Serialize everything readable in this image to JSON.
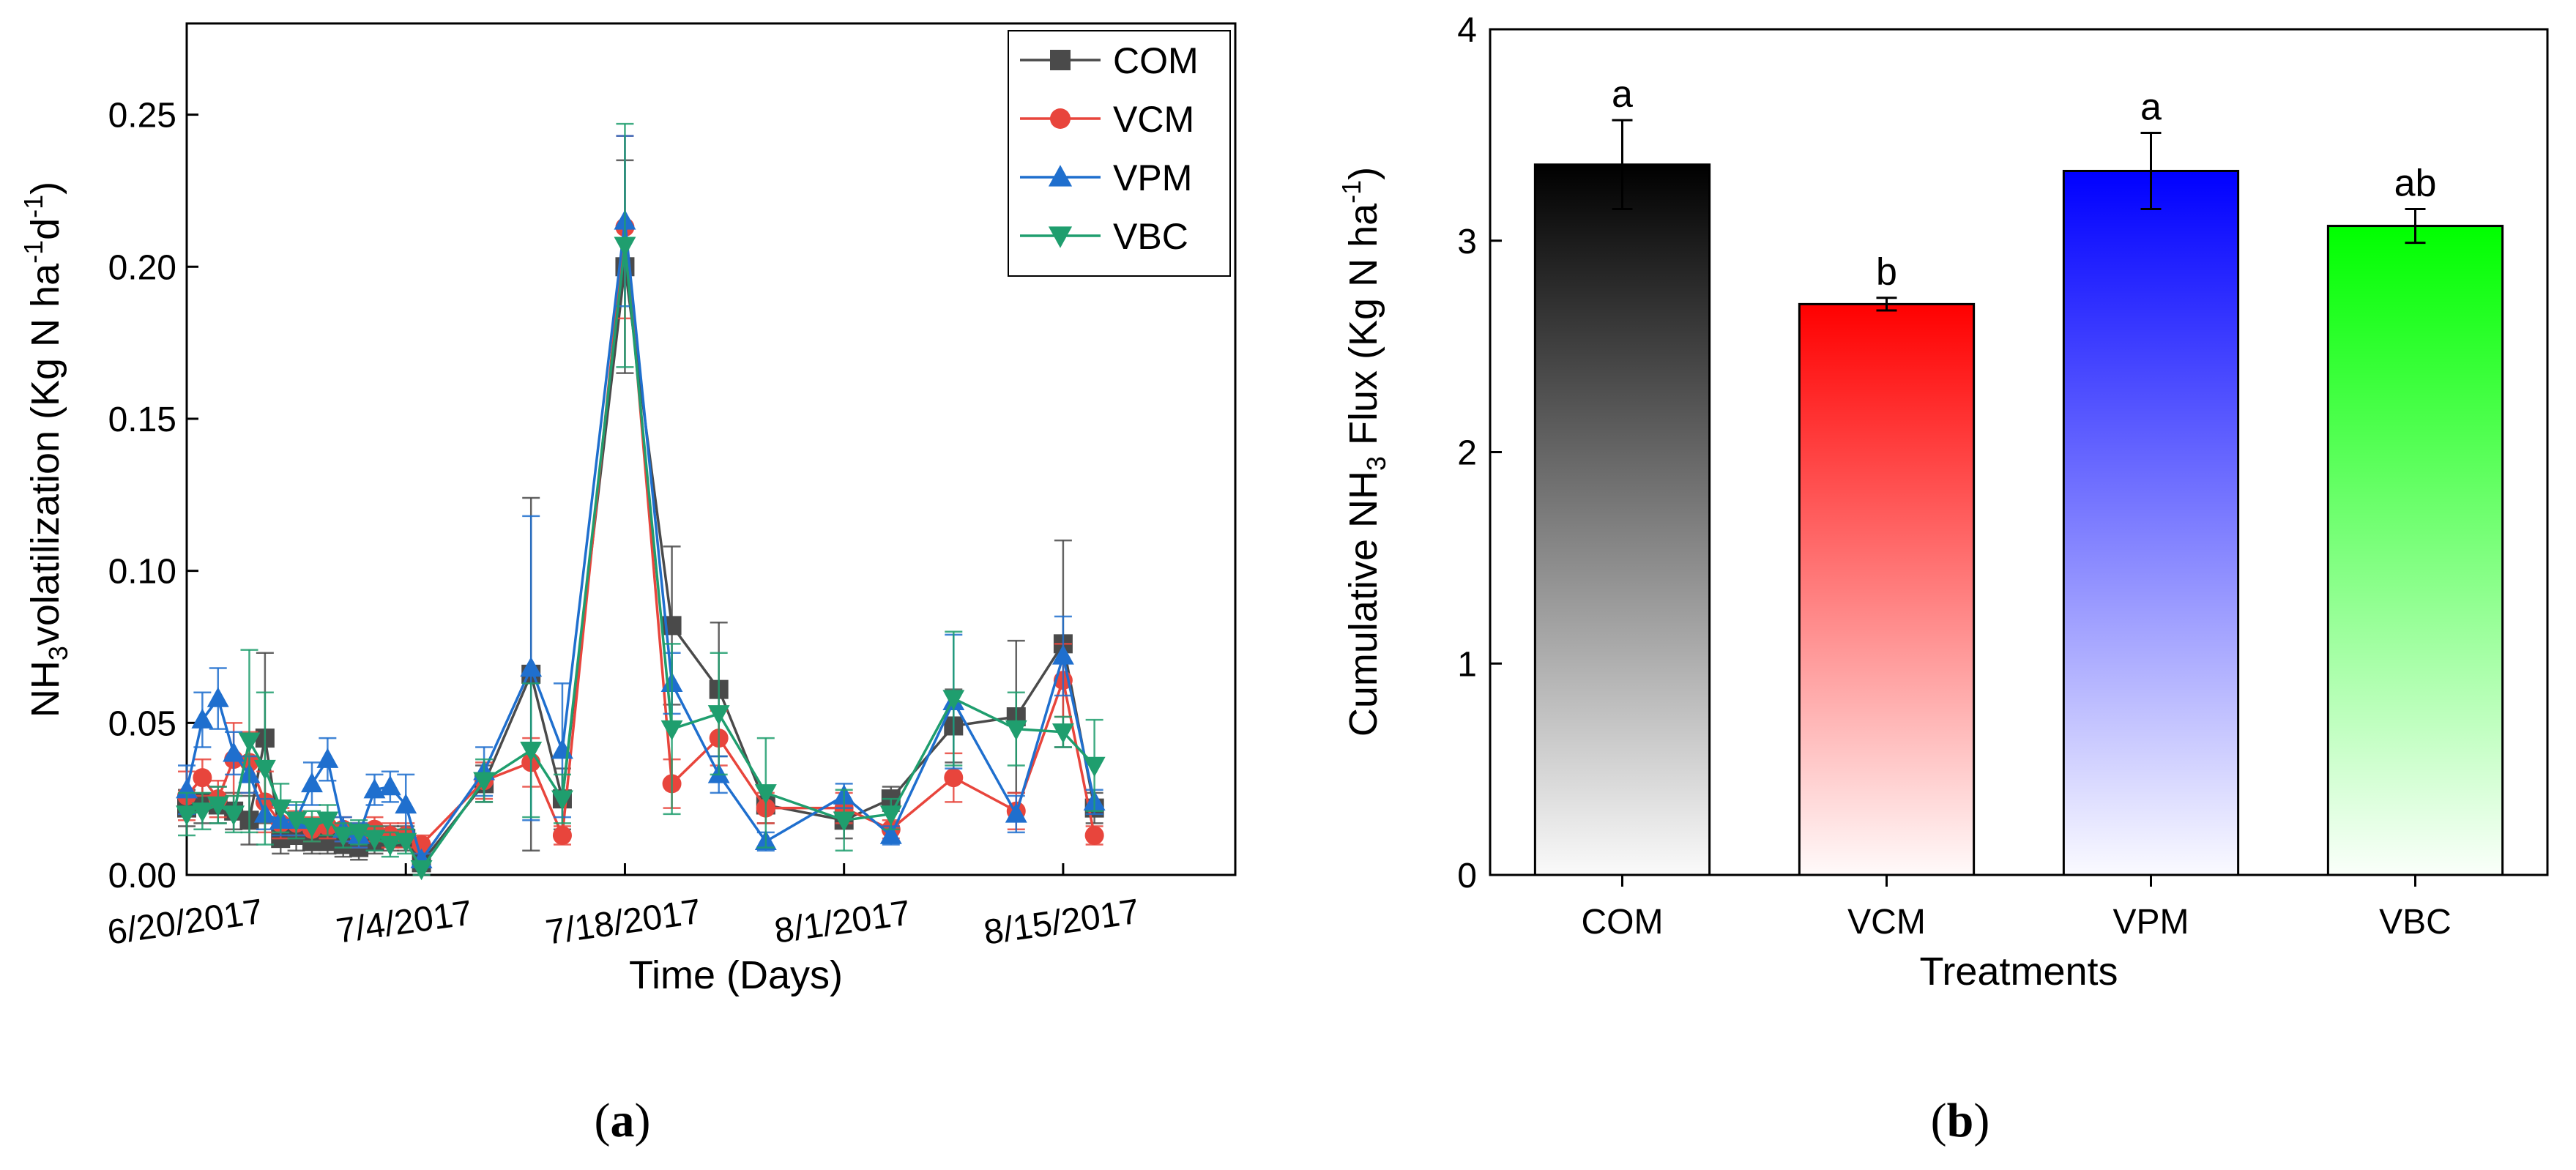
{
  "chart_data": [
    {
      "type": "line",
      "panel_label": "a",
      "xlabel": "Time (Days)",
      "ylabel_parts": [
        "NH",
        "3",
        "volatilization (Kg N ha",
        "-1",
        "d",
        "-1",
        ")"
      ],
      "ylim": [
        0,
        0.28
      ],
      "yticks": [
        0.0,
        0.05,
        0.1,
        0.15,
        0.2,
        0.25
      ],
      "ytick_labels": [
        "0.00",
        "0.05",
        "0.10",
        "0.15",
        "0.20",
        "0.25"
      ],
      "xlim": [
        0,
        67
      ],
      "xticks": [
        0,
        14,
        28,
        42,
        56
      ],
      "xtick_labels": [
        "6/20/2017",
        "7/4/2017",
        "7/18/2017",
        "8/1/2017",
        "8/15/2017"
      ],
      "legend_position": "top-right",
      "series": [
        {
          "name": "COM",
          "color": "#4a4a4a",
          "marker": "square",
          "x": [
            0,
            1,
            2,
            3,
            4,
            5,
            6,
            7,
            8,
            9,
            10,
            11,
            12,
            13,
            14,
            15,
            19,
            22,
            24,
            28,
            31,
            34,
            37,
            42,
            45,
            49,
            53,
            56,
            58
          ],
          "y": [
            0.022,
            0.024,
            0.023,
            0.021,
            0.018,
            0.045,
            0.012,
            0.013,
            0.011,
            0.011,
            0.01,
            0.009,
            0.011,
            0.012,
            0.012,
            0.004,
            0.03,
            0.066,
            0.025,
            0.2,
            0.082,
            0.061,
            0.023,
            0.018,
            0.025,
            0.049,
            0.052,
            0.076,
            0.022
          ],
          "err": [
            0.006,
            0.007,
            0.006,
            0.006,
            0.008,
            0.028,
            0.005,
            0.005,
            0.004,
            0.004,
            0.004,
            0.004,
            0.004,
            0.004,
            0.004,
            0.002,
            0.006,
            0.058,
            0.01,
            0.035,
            0.026,
            0.022,
            0.006,
            0.006,
            0.004,
            0.012,
            0.025,
            0.034,
            0.005
          ]
        },
        {
          "name": "VCM",
          "color": "#e8453c",
          "marker": "circle",
          "x": [
            0,
            1,
            2,
            3,
            4,
            5,
            6,
            7,
            8,
            9,
            10,
            11,
            12,
            13,
            14,
            15,
            19,
            22,
            24,
            28,
            31,
            34,
            37,
            42,
            45,
            49,
            53,
            56,
            58
          ],
          "y": [
            0.026,
            0.032,
            0.025,
            0.038,
            0.037,
            0.024,
            0.017,
            0.017,
            0.015,
            0.016,
            0.015,
            0.013,
            0.015,
            0.013,
            0.013,
            0.01,
            0.031,
            0.037,
            0.013,
            0.213,
            0.03,
            0.045,
            0.022,
            0.022,
            0.015,
            0.032,
            0.021,
            0.064,
            0.013
          ],
          "err": [
            0.008,
            0.006,
            0.006,
            0.012,
            0.01,
            0.01,
            0.005,
            0.004,
            0.004,
            0.004,
            0.004,
            0.004,
            0.004,
            0.004,
            0.004,
            0.003,
            0.006,
            0.008,
            0.003,
            0.03,
            0.008,
            0.009,
            0.005,
            0.005,
            0.003,
            0.008,
            0.006,
            0.012,
            0.003
          ]
        },
        {
          "name": "VPM",
          "color": "#1f6fce",
          "marker": "triangle-up",
          "x": [
            0,
            1,
            2,
            3,
            4,
            5,
            6,
            7,
            8,
            9,
            10,
            11,
            12,
            13,
            14,
            15,
            19,
            22,
            24,
            28,
            31,
            34,
            37,
            42,
            45,
            49,
            53,
            56,
            58
          ],
          "y": [
            0.028,
            0.051,
            0.058,
            0.04,
            0.033,
            0.02,
            0.018,
            0.018,
            0.03,
            0.038,
            0.015,
            0.013,
            0.028,
            0.029,
            0.023,
            0.005,
            0.034,
            0.068,
            0.041,
            0.215,
            0.063,
            0.033,
            0.011,
            0.026,
            0.013,
            0.057,
            0.02,
            0.072,
            0.024
          ],
          "err": [
            0.008,
            0.009,
            0.01,
            0.007,
            0.006,
            0.005,
            0.005,
            0.005,
            0.007,
            0.007,
            0.004,
            0.004,
            0.005,
            0.005,
            0.01,
            0.002,
            0.008,
            0.05,
            0.022,
            0.028,
            0.01,
            0.006,
            0.003,
            0.004,
            0.003,
            0.022,
            0.006,
            0.013,
            0.004
          ]
        },
        {
          "name": "VBC",
          "color": "#1f9e6e",
          "marker": "triangle-down",
          "x": [
            0,
            1,
            2,
            3,
            4,
            5,
            6,
            7,
            8,
            9,
            10,
            11,
            12,
            13,
            14,
            15,
            19,
            22,
            24,
            28,
            31,
            34,
            37,
            42,
            45,
            49,
            53,
            56,
            58
          ],
          "y": [
            0.02,
            0.021,
            0.023,
            0.02,
            0.044,
            0.035,
            0.022,
            0.018,
            0.016,
            0.018,
            0.013,
            0.014,
            0.012,
            0.01,
            0.011,
            0.002,
            0.031,
            0.041,
            0.025,
            0.207,
            0.048,
            0.053,
            0.027,
            0.018,
            0.02,
            0.058,
            0.048,
            0.047,
            0.036
          ],
          "err": [
            0.007,
            0.006,
            0.006,
            0.006,
            0.03,
            0.025,
            0.008,
            0.006,
            0.005,
            0.005,
            0.004,
            0.004,
            0.004,
            0.004,
            0.004,
            0.002,
            0.007,
            0.022,
            0.008,
            0.04,
            0.028,
            0.02,
            0.018,
            0.01,
            0.005,
            0.022,
            0.012,
            0.005,
            0.015
          ]
        }
      ]
    },
    {
      "type": "bar",
      "panel_label": "b",
      "xlabel": "Treatments",
      "ylabel_parts": [
        "Cumulative NH",
        "3",
        " Flux (Kg N ha",
        "-1",
        ")"
      ],
      "ylim": [
        0,
        4
      ],
      "yticks": [
        0,
        1,
        2,
        3,
        4
      ],
      "ytick_labels": [
        "0",
        "1",
        "2",
        "3",
        "4"
      ],
      "categories": [
        "COM",
        "VCM",
        "VPM",
        "VBC"
      ],
      "values": [
        3.36,
        2.7,
        3.33,
        3.07
      ],
      "errors": [
        0.21,
        0.03,
        0.18,
        0.08
      ],
      "significance_letters": [
        "a",
        "b",
        "a",
        "ab"
      ],
      "colors": [
        "#000000",
        "#ff0000",
        "#0000ff",
        "#00ff00"
      ]
    }
  ]
}
